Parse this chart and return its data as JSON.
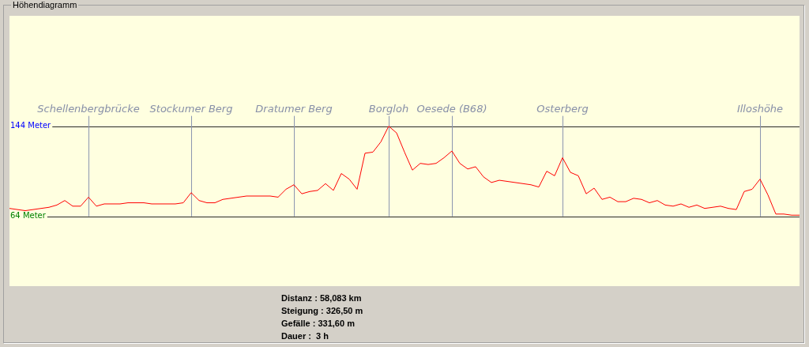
{
  "chart_data": {
    "type": "line",
    "title": "Höhendiagramm",
    "categories": [
      null,
      null,
      null,
      null,
      null,
      null,
      null,
      null,
      null,
      null,
      "Schellenbergbrücke",
      null,
      null,
      null,
      null,
      null,
      null,
      null,
      null,
      null,
      null,
      null,
      null,
      "Stockumer Berg",
      null,
      null,
      null,
      null,
      null,
      null,
      null,
      null,
      null,
      null,
      null,
      null,
      "Dratumer Berg",
      null,
      null,
      null,
      null,
      null,
      null,
      null,
      null,
      null,
      null,
      null,
      "Borgloh",
      null,
      null,
      null,
      null,
      null,
      null,
      null,
      "Oesede (B68)",
      null,
      null,
      null,
      null,
      null,
      null,
      null,
      null,
      null,
      null,
      null,
      null,
      null,
      "Osterberg",
      null,
      null,
      null,
      null,
      null,
      null,
      null,
      null,
      null,
      null,
      null,
      null,
      null,
      null,
      null,
      null,
      null,
      null,
      null,
      null,
      null,
      null,
      null,
      null,
      "Illoshöhe",
      null,
      null,
      null,
      null,
      null
    ],
    "ylim": [
      2,
      242
    ],
    "yticks": [
      {
        "value": 144,
        "label": "144 Meter"
      },
      {
        "value": 64,
        "label": "64 Meter"
      }
    ],
    "grid": "y",
    "legend": false,
    "marker": "none",
    "series": [
      {
        "color": "#ff0000",
        "values": [
          71,
          70,
          69,
          70,
          71,
          72,
          74,
          78,
          73,
          73,
          81,
          73,
          75,
          75,
          75,
          76,
          76,
          76,
          75,
          75,
          75,
          75,
          76,
          85,
          78,
          76,
          76,
          79,
          80,
          81,
          82,
          82,
          82,
          82,
          81,
          88,
          92,
          84,
          86,
          87,
          93,
          87,
          102,
          97,
          88,
          120,
          121,
          130,
          144,
          138,
          121,
          105,
          111,
          110,
          111,
          116,
          122,
          111,
          106,
          108,
          99,
          94,
          96,
          95,
          94,
          93,
          92,
          90,
          104,
          100,
          116,
          103,
          100,
          84,
          89,
          79,
          81,
          77,
          77,
          80,
          79,
          76,
          78,
          74,
          73,
          75,
          72,
          74,
          71,
          72,
          73,
          71,
          70,
          86,
          88,
          97,
          83,
          66,
          66,
          65,
          65
        ]
      }
    ],
    "ref_lines": [
      {
        "axis": "x",
        "value": "Schellenbergbrücke",
        "color": "#8c96b0"
      },
      {
        "axis": "x",
        "value": "Stockumer Berg",
        "color": "#8c96b0"
      },
      {
        "axis": "x",
        "value": "Dratumer Berg",
        "color": "#8c96b0"
      },
      {
        "axis": "x",
        "value": "Borgloh",
        "color": "#8c96b0"
      },
      {
        "axis": "x",
        "value": "Oesede (B68)",
        "color": "#8c96b0"
      },
      {
        "axis": "x",
        "value": "Osterberg",
        "color": "#8c96b0"
      },
      {
        "axis": "x",
        "value": "Illoshöhe",
        "color": "#8c96b0"
      }
    ],
    "annotations": [
      "Distanz : 58,083 km",
      "Steigung : 326,50 m",
      "Gefälle : 331,60 m",
      "Dauer :  3 h"
    ]
  }
}
